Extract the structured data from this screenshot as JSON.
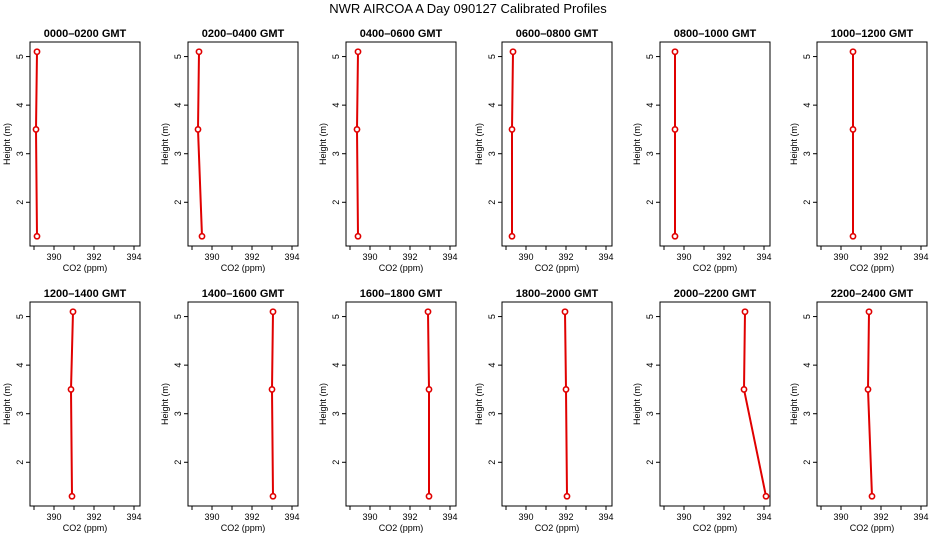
{
  "title": "NWR AIRCOA A  Day 090127  Calibrated Profiles",
  "chart_data": {
    "type": "line",
    "title": "NWR AIRCOA A  Day 090127  Calibrated Profiles",
    "xlabel": "CO2 (ppm)",
    "ylabel": "Height (m)",
    "xlim": [
      388.8,
      394.3
    ],
    "ylim": [
      1.1,
      5.3
    ],
    "xticks": [
      "390",
      "392",
      "394"
    ],
    "yticks": [
      "2",
      "3",
      "4",
      "5"
    ],
    "grid": false,
    "line_color": "#e00000",
    "panels": [
      {
        "title": "0000–0200 GMT",
        "points": [
          {
            "x": 389.15,
            "y": 1.3
          },
          {
            "x": 389.1,
            "y": 3.5
          },
          {
            "x": 389.15,
            "y": 5.1
          }
        ]
      },
      {
        "title": "0200–0400 GMT",
        "points": [
          {
            "x": 389.5,
            "y": 1.3
          },
          {
            "x": 389.3,
            "y": 3.5
          },
          {
            "x": 389.35,
            "y": 5.1
          }
        ]
      },
      {
        "title": "0400–0600 GMT",
        "points": [
          {
            "x": 389.4,
            "y": 1.3
          },
          {
            "x": 389.35,
            "y": 3.5
          },
          {
            "x": 389.4,
            "y": 5.1
          }
        ]
      },
      {
        "title": "0600–0800 GMT",
        "points": [
          {
            "x": 389.3,
            "y": 1.3
          },
          {
            "x": 389.3,
            "y": 3.5
          },
          {
            "x": 389.35,
            "y": 5.1
          }
        ]
      },
      {
        "title": "0800–1000 GMT",
        "points": [
          {
            "x": 389.55,
            "y": 1.3
          },
          {
            "x": 389.55,
            "y": 3.5
          },
          {
            "x": 389.55,
            "y": 5.1
          }
        ]
      },
      {
        "title": "1000–1200 GMT",
        "points": [
          {
            "x": 390.6,
            "y": 1.3
          },
          {
            "x": 390.6,
            "y": 3.5
          },
          {
            "x": 390.6,
            "y": 5.1
          }
        ]
      },
      {
        "title": "1200–1400 GMT",
        "points": [
          {
            "x": 390.9,
            "y": 1.3
          },
          {
            "x": 390.85,
            "y": 3.5
          },
          {
            "x": 390.95,
            "y": 5.1
          }
        ]
      },
      {
        "title": "1400–1600 GMT",
        "points": [
          {
            "x": 393.05,
            "y": 1.3
          },
          {
            "x": 393.0,
            "y": 3.5
          },
          {
            "x": 393.05,
            "y": 5.1
          }
        ]
      },
      {
        "title": "1600–1800 GMT",
        "points": [
          {
            "x": 392.95,
            "y": 1.3
          },
          {
            "x": 392.95,
            "y": 3.5
          },
          {
            "x": 392.9,
            "y": 5.1
          }
        ]
      },
      {
        "title": "1800–2000 GMT",
        "points": [
          {
            "x": 392.05,
            "y": 1.3
          },
          {
            "x": 392.0,
            "y": 3.5
          },
          {
            "x": 391.95,
            "y": 5.1
          }
        ]
      },
      {
        "title": "2000–2200 GMT",
        "points": [
          {
            "x": 394.1,
            "y": 1.3
          },
          {
            "x": 393.0,
            "y": 3.5
          },
          {
            "x": 393.05,
            "y": 5.1
          }
        ]
      },
      {
        "title": "2200–2400 GMT",
        "points": [
          {
            "x": 391.55,
            "y": 1.3
          },
          {
            "x": 391.35,
            "y": 3.5
          },
          {
            "x": 391.4,
            "y": 5.1
          }
        ]
      }
    ]
  }
}
